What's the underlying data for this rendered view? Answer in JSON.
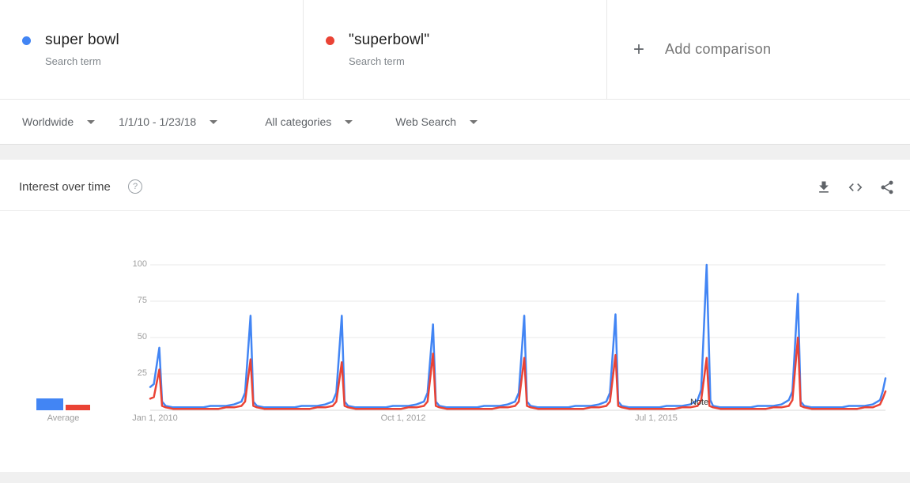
{
  "comparison": {
    "terms": [
      {
        "label": "super bowl",
        "sublabel": "Search term",
        "color": "#4285f4"
      },
      {
        "label": "\"superbowl\"",
        "sublabel": "Search term",
        "color": "#ea4335"
      }
    ],
    "add_label": "Add comparison"
  },
  "icons": {
    "plus": "+",
    "help": "?"
  },
  "filters": [
    {
      "label": "Worldwide"
    },
    {
      "label": "1/1/10 - 1/23/18"
    },
    {
      "label": "All categories"
    },
    {
      "label": "Web Search"
    }
  ],
  "panel": {
    "title": "Interest over time"
  },
  "legend": {
    "average_label": "Average",
    "averages": [
      8,
      4
    ]
  },
  "chart_data": {
    "type": "line",
    "title": "Interest over time",
    "x_range": [
      "Jan 1, 2010",
      "Jan 23, 2018"
    ],
    "x_unit": "years since 2010-01-01",
    "x_max": 8.06,
    "ylim": [
      0,
      100
    ],
    "yticks": [
      25,
      50,
      75,
      100
    ],
    "grid": true,
    "x_axis_labels": [
      "Jan 1, 2010",
      "Oct 1, 2012",
      "Jul 1, 2015"
    ],
    "note": "Note",
    "note_position": 0.744,
    "series": [
      {
        "name": "super bowl",
        "color": "#4285f4",
        "points": [
          [
            0,
            16
          ],
          [
            0.04,
            18
          ],
          [
            0.1,
            43
          ],
          [
            0.13,
            6
          ],
          [
            0.17,
            3
          ],
          [
            0.25,
            2
          ],
          [
            0.33,
            2
          ],
          [
            0.42,
            2
          ],
          [
            0.5,
            2
          ],
          [
            0.58,
            2
          ],
          [
            0.66,
            3
          ],
          [
            0.75,
            3
          ],
          [
            0.83,
            3
          ],
          [
            0.92,
            4
          ],
          [
            1,
            6
          ],
          [
            1.04,
            12
          ],
          [
            1.1,
            65
          ],
          [
            1.13,
            6
          ],
          [
            1.17,
            3
          ],
          [
            1.25,
            2
          ],
          [
            1.33,
            2
          ],
          [
            1.42,
            2
          ],
          [
            1.5,
            2
          ],
          [
            1.58,
            2
          ],
          [
            1.66,
            3
          ],
          [
            1.75,
            3
          ],
          [
            1.83,
            3
          ],
          [
            1.92,
            4
          ],
          [
            2,
            6
          ],
          [
            2.04,
            12
          ],
          [
            2.1,
            65
          ],
          [
            2.13,
            6
          ],
          [
            2.17,
            3
          ],
          [
            2.25,
            2
          ],
          [
            2.33,
            2
          ],
          [
            2.42,
            2
          ],
          [
            2.5,
            2
          ],
          [
            2.58,
            2
          ],
          [
            2.66,
            3
          ],
          [
            2.75,
            3
          ],
          [
            2.83,
            3
          ],
          [
            2.92,
            4
          ],
          [
            3,
            6
          ],
          [
            3.04,
            12
          ],
          [
            3.1,
            59
          ],
          [
            3.13,
            6
          ],
          [
            3.17,
            3
          ],
          [
            3.25,
            2
          ],
          [
            3.33,
            2
          ],
          [
            3.42,
            2
          ],
          [
            3.5,
            2
          ],
          [
            3.58,
            2
          ],
          [
            3.66,
            3
          ],
          [
            3.75,
            3
          ],
          [
            3.83,
            3
          ],
          [
            3.92,
            4
          ],
          [
            4,
            6
          ],
          [
            4.04,
            12
          ],
          [
            4.1,
            65
          ],
          [
            4.13,
            6
          ],
          [
            4.17,
            3
          ],
          [
            4.25,
            2
          ],
          [
            4.33,
            2
          ],
          [
            4.42,
            2
          ],
          [
            4.5,
            2
          ],
          [
            4.58,
            2
          ],
          [
            4.66,
            3
          ],
          [
            4.75,
            3
          ],
          [
            4.83,
            3
          ],
          [
            4.92,
            4
          ],
          [
            5,
            6
          ],
          [
            5.04,
            12
          ],
          [
            5.1,
            66
          ],
          [
            5.13,
            6
          ],
          [
            5.17,
            3
          ],
          [
            5.25,
            2
          ],
          [
            5.33,
            2
          ],
          [
            5.42,
            2
          ],
          [
            5.5,
            2
          ],
          [
            5.58,
            2
          ],
          [
            5.66,
            3
          ],
          [
            5.75,
            3
          ],
          [
            5.83,
            3
          ],
          [
            5.92,
            4
          ],
          [
            6,
            7
          ],
          [
            6.04,
            14
          ],
          [
            6.1,
            100
          ],
          [
            6.14,
            7
          ],
          [
            6.17,
            3
          ],
          [
            6.25,
            2
          ],
          [
            6.33,
            2
          ],
          [
            6.42,
            2
          ],
          [
            6.5,
            2
          ],
          [
            6.58,
            2
          ],
          [
            6.66,
            3
          ],
          [
            6.75,
            3
          ],
          [
            6.83,
            3
          ],
          [
            6.92,
            4
          ],
          [
            7,
            7
          ],
          [
            7.04,
            13
          ],
          [
            7.1,
            80
          ],
          [
            7.13,
            6
          ],
          [
            7.17,
            3
          ],
          [
            7.25,
            2
          ],
          [
            7.33,
            2
          ],
          [
            7.42,
            2
          ],
          [
            7.5,
            2
          ],
          [
            7.58,
            2
          ],
          [
            7.66,
            3
          ],
          [
            7.75,
            3
          ],
          [
            7.83,
            3
          ],
          [
            7.92,
            4
          ],
          [
            8,
            7
          ],
          [
            8.03,
            13
          ],
          [
            8.06,
            22
          ]
        ]
      },
      {
        "name": "\"superbowl\"",
        "color": "#ea4335",
        "points": [
          [
            0,
            8
          ],
          [
            0.04,
            9
          ],
          [
            0.1,
            28
          ],
          [
            0.13,
            3
          ],
          [
            0.17,
            2
          ],
          [
            0.25,
            1
          ],
          [
            0.33,
            1
          ],
          [
            0.42,
            1
          ],
          [
            0.5,
            1
          ],
          [
            0.58,
            1
          ],
          [
            0.66,
            1
          ],
          [
            0.75,
            1
          ],
          [
            0.83,
            2
          ],
          [
            0.92,
            2
          ],
          [
            1,
            3
          ],
          [
            1.04,
            6
          ],
          [
            1.1,
            35
          ],
          [
            1.13,
            3
          ],
          [
            1.17,
            2
          ],
          [
            1.25,
            1
          ],
          [
            1.33,
            1
          ],
          [
            1.42,
            1
          ],
          [
            1.5,
            1
          ],
          [
            1.58,
            1
          ],
          [
            1.66,
            1
          ],
          [
            1.75,
            1
          ],
          [
            1.83,
            2
          ],
          [
            1.92,
            2
          ],
          [
            2,
            3
          ],
          [
            2.04,
            6
          ],
          [
            2.1,
            33
          ],
          [
            2.13,
            3
          ],
          [
            2.17,
            2
          ],
          [
            2.25,
            1
          ],
          [
            2.33,
            1
          ],
          [
            2.42,
            1
          ],
          [
            2.5,
            1
          ],
          [
            2.58,
            1
          ],
          [
            2.66,
            1
          ],
          [
            2.75,
            1
          ],
          [
            2.83,
            2
          ],
          [
            2.92,
            2
          ],
          [
            3,
            3
          ],
          [
            3.04,
            6
          ],
          [
            3.1,
            39
          ],
          [
            3.13,
            3
          ],
          [
            3.17,
            2
          ],
          [
            3.25,
            1
          ],
          [
            3.33,
            1
          ],
          [
            3.42,
            1
          ],
          [
            3.5,
            1
          ],
          [
            3.58,
            1
          ],
          [
            3.66,
            1
          ],
          [
            3.75,
            1
          ],
          [
            3.83,
            2
          ],
          [
            3.92,
            2
          ],
          [
            4,
            3
          ],
          [
            4.04,
            6
          ],
          [
            4.1,
            36
          ],
          [
            4.13,
            3
          ],
          [
            4.17,
            2
          ],
          [
            4.25,
            1
          ],
          [
            4.33,
            1
          ],
          [
            4.42,
            1
          ],
          [
            4.5,
            1
          ],
          [
            4.58,
            1
          ],
          [
            4.66,
            1
          ],
          [
            4.75,
            1
          ],
          [
            4.83,
            2
          ],
          [
            4.92,
            2
          ],
          [
            5,
            3
          ],
          [
            5.04,
            6
          ],
          [
            5.1,
            38
          ],
          [
            5.13,
            3
          ],
          [
            5.17,
            2
          ],
          [
            5.25,
            1
          ],
          [
            5.33,
            1
          ],
          [
            5.42,
            1
          ],
          [
            5.5,
            1
          ],
          [
            5.58,
            1
          ],
          [
            5.66,
            1
          ],
          [
            5.75,
            1
          ],
          [
            5.83,
            2
          ],
          [
            5.92,
            2
          ],
          [
            6,
            3
          ],
          [
            6.04,
            7
          ],
          [
            6.1,
            36
          ],
          [
            6.13,
            3
          ],
          [
            6.17,
            2
          ],
          [
            6.25,
            1
          ],
          [
            6.33,
            1
          ],
          [
            6.42,
            1
          ],
          [
            6.5,
            1
          ],
          [
            6.58,
            1
          ],
          [
            6.66,
            1
          ],
          [
            6.75,
            1
          ],
          [
            6.83,
            2
          ],
          [
            6.92,
            2
          ],
          [
            7,
            3
          ],
          [
            7.04,
            7
          ],
          [
            7.1,
            50
          ],
          [
            7.13,
            3
          ],
          [
            7.17,
            2
          ],
          [
            7.25,
            1
          ],
          [
            7.33,
            1
          ],
          [
            7.42,
            1
          ],
          [
            7.5,
            1
          ],
          [
            7.58,
            1
          ],
          [
            7.66,
            1
          ],
          [
            7.75,
            1
          ],
          [
            7.83,
            2
          ],
          [
            7.92,
            2
          ],
          [
            8,
            4
          ],
          [
            8.03,
            8
          ],
          [
            8.06,
            13
          ]
        ]
      }
    ]
  }
}
